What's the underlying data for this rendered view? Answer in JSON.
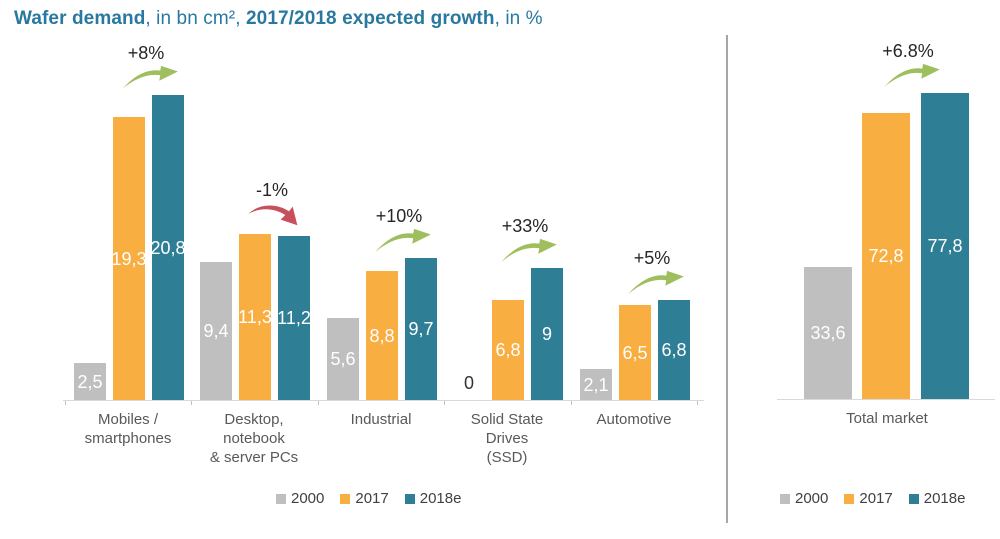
{
  "title": {
    "full": "Wafer demand, in bn cm², 2017/2018 expected growth, in %",
    "parts": [
      {
        "text": "Wafer demand",
        "bold": true
      },
      {
        "text": ", in bn cm², ",
        "bold": false
      },
      {
        "text": "2017/2018 expected growth",
        "bold": true
      },
      {
        "text": ", in %",
        "bold": false
      }
    ]
  },
  "colors": {
    "title_text": "#2878a0",
    "series_2000": "#bfbfbf",
    "series_2017": "#f9ae41",
    "series_2018e": "#2e7f96",
    "growth_up": "#9fbe5e",
    "growth_down": "#c7505c",
    "axis": "#d9d9d9",
    "divider": "#a6a6a6",
    "bar_value_text": "#ffffff",
    "category_text": "#595959"
  },
  "chart_data": {
    "type": "bar",
    "title": "Wafer demand, in bn cm², 2017/2018 expected growth, in %",
    "unit": "bn cm²",
    "grid": false,
    "legend_position": "bottom",
    "charts": [
      {
        "name": "wafer-demand-by-segment",
        "categories": [
          "Mobiles /\nsmartphones",
          "Desktop,\nnotebook\n& server PCs",
          "Industrial",
          "Solid State\nDrives\n(SSD)",
          "Automotive"
        ],
        "series": [
          {
            "name": "2000",
            "color": "#bfbfbf",
            "values": [
              2.5,
              9.4,
              5.6,
              0,
              2.1
            ],
            "labels": [
              "2,5",
              "9,4",
              "5,6",
              "0",
              "2,1"
            ]
          },
          {
            "name": "2017",
            "color": "#f9ae41",
            "values": [
              19.3,
              11.3,
              8.8,
              6.8,
              6.5
            ],
            "labels": [
              "19,3",
              "11,3",
              "8,8",
              "6,8",
              "6,5"
            ]
          },
          {
            "name": "2018e",
            "color": "#2e7f96",
            "values": [
              20.8,
              11.2,
              9.7,
              9,
              6.8
            ],
            "labels": [
              "20,8",
              "11,2",
              "9,7",
              "9",
              "6,8"
            ]
          }
        ],
        "growth": [
          {
            "label": "+8%",
            "direction": "up"
          },
          {
            "label": "-1%",
            "direction": "down"
          },
          {
            "label": "+10%",
            "direction": "up"
          },
          {
            "label": "+33%",
            "direction": "up"
          },
          {
            "label": "+5%",
            "direction": "up"
          }
        ],
        "ylim": [
          0,
          22
        ]
      },
      {
        "name": "wafer-demand-total-market",
        "categories": [
          "Total market"
        ],
        "series": [
          {
            "name": "2000",
            "color": "#bfbfbf",
            "values": [
              33.6
            ],
            "labels": [
              "33,6"
            ]
          },
          {
            "name": "2017",
            "color": "#f9ae41",
            "values": [
              72.8
            ],
            "labels": [
              "72,8"
            ]
          },
          {
            "name": "2018e",
            "color": "#2e7f96",
            "values": [
              77.8
            ],
            "labels": [
              "77,8"
            ]
          }
        ],
        "growth": [
          {
            "label": "+6.8%",
            "direction": "up"
          }
        ],
        "ylim": [
          0,
          80
        ]
      }
    ]
  },
  "legend": {
    "items": [
      "2000",
      "2017",
      "2018e"
    ]
  }
}
